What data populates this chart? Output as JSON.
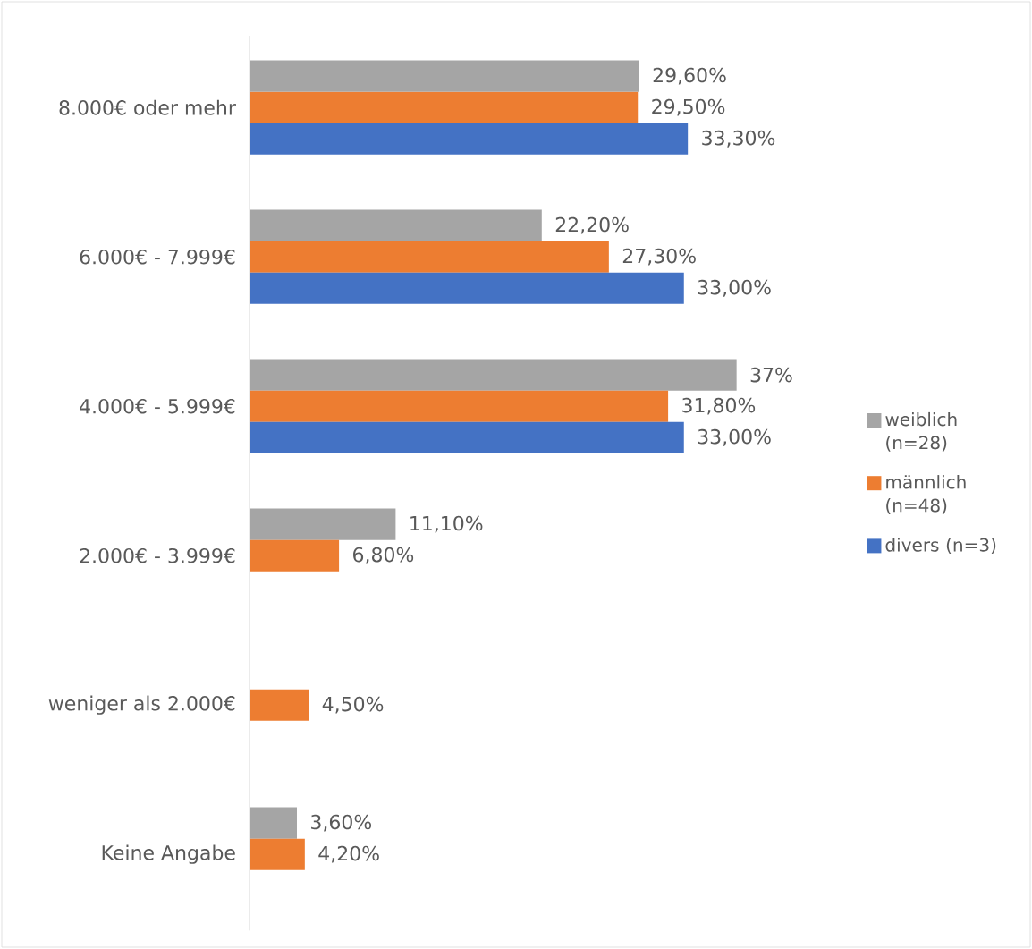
{
  "chart_data": {
    "type": "bar",
    "orientation": "horizontal",
    "legend": "right",
    "categories": [
      "8.000€ oder mehr",
      "6.000€ - 7.999€",
      "4.000€ - 5.999€",
      "2.000€ - 3.999€",
      "weniger als 2.000€",
      "Keine Angabe"
    ],
    "series": [
      {
        "name": "weiblich (n=28)",
        "color": "#a5a5a5",
        "values": [
          29.6,
          22.2,
          37,
          11.1,
          null,
          3.6
        ],
        "value_labels": [
          "29,60%",
          "22,20%",
          "37%",
          "11,10%",
          null,
          "3,60%"
        ]
      },
      {
        "name": "männlich (n=48)",
        "color": "#ed7d31",
        "values": [
          29.5,
          27.3,
          31.8,
          6.8,
          4.5,
          4.2
        ],
        "value_labels": [
          "29,50%",
          "27,30%",
          "31,80%",
          "6,80%",
          "4,50%",
          "4,20%"
        ]
      },
      {
        "name": "divers (n=3)",
        "color": "#4472c4",
        "values": [
          33.3,
          33.0,
          33.0,
          null,
          null,
          null
        ],
        "value_labels": [
          "33,30%",
          "33,00%",
          "33,00%",
          null,
          null,
          null
        ]
      }
    ]
  }
}
